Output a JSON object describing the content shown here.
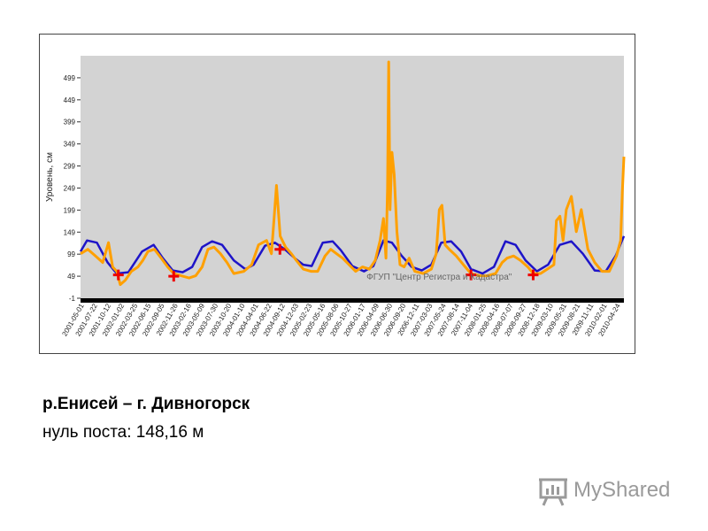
{
  "caption": {
    "title": "р.Енисей – г. Дивногорск",
    "subtitle": "нуль поста: 148,16 м"
  },
  "logo": {
    "text": "MyShared",
    "icon": "presentation-board-icon"
  },
  "colors": {
    "plot_bg": "#d3d3d3",
    "blue": "#1e14c8",
    "orange": "#ffa000",
    "marker": "#ee0000",
    "baseline": "#000000"
  },
  "chart_data": {
    "type": "line",
    "ylabel": "Уровень, см",
    "watermark": "ФГУП \"Центр Регистра и Кадастра\"",
    "ylim": [
      -1,
      549
    ],
    "yticks": [
      -1,
      49,
      99,
      149,
      199,
      249,
      299,
      349,
      399,
      449,
      499
    ],
    "grid": false,
    "x_tick_labels": [
      "2001-05-01",
      "2001-07-22",
      "2001-10-12",
      "2002-01-02",
      "2002-03-25",
      "2002-06-15",
      "2002-09-05",
      "2002-11-26",
      "2003-02-16",
      "2003-05-09",
      "2003-07-30",
      "2003-10-20",
      "2004-01-10",
      "2004-04-01",
      "2004-06-22",
      "2004-09-12",
      "2004-12-03",
      "2005-02-23",
      "2005-05-16",
      "2005-08-06",
      "2005-10-27",
      "2006-01-17",
      "2006-04-09",
      "2006-06-30",
      "2006-09-20",
      "2006-12-11",
      "2007-03-03",
      "2007-05-24",
      "2007-08-14",
      "2007-11-04",
      "2008-01-25",
      "2008-04-16",
      "2008-07-07",
      "2008-09-27",
      "2008-12-18",
      "2009-03-10",
      "2009-05-31",
      "2009-08-21",
      "2009-11-11",
      "2010-02-01",
      "2010-04-24"
    ],
    "x_start": "2001-05-01",
    "x_end": "2010-06-30",
    "series": [
      {
        "color": "#1e14c8",
        "x": [
          "2001-05-01",
          "2001-06-10",
          "2001-08-10",
          "2001-10-15",
          "2001-12-10",
          "2002-02-20",
          "2002-05-15",
          "2002-07-25",
          "2002-09-20",
          "2002-11-20",
          "2003-01-20",
          "2003-03-20",
          "2003-05-20",
          "2003-07-20",
          "2003-09-20",
          "2003-12-01",
          "2004-02-10",
          "2004-04-01",
          "2004-06-10",
          "2004-08-10",
          "2004-10-10",
          "2004-12-10",
          "2005-02-01",
          "2005-03-25",
          "2005-06-01",
          "2005-08-01",
          "2005-09-20",
          "2005-11-30",
          "2006-02-10",
          "2006-04-09",
          "2006-06-10",
          "2006-08-01",
          "2006-10-01",
          "2006-12-01",
          "2007-02-01",
          "2007-04-01",
          "2007-06-01",
          "2007-08-01",
          "2007-10-01",
          "2007-12-01",
          "2008-02-10",
          "2008-04-20",
          "2008-06-30",
          "2008-09-01",
          "2008-11-01",
          "2009-01-10",
          "2009-03-20",
          "2009-05-31",
          "2009-08-10",
          "2009-10-20",
          "2010-01-01",
          "2010-03-10",
          "2010-05-10",
          "2010-06-30"
        ],
        "y": [
          105,
          130,
          125,
          80,
          55,
          58,
          105,
          120,
          90,
          62,
          58,
          70,
          115,
          128,
          120,
          85,
          65,
          75,
          118,
          125,
          110,
          90,
          75,
          72,
          125,
          128,
          108,
          72,
          60,
          72,
          130,
          125,
          95,
          70,
          62,
          75,
          125,
          128,
          105,
          65,
          55,
          70,
          128,
          120,
          85,
          60,
          75,
          120,
          128,
          100,
          62,
          60,
          95,
          140
        ]
      },
      {
        "color": "#ffa000",
        "x": [
          "2001-05-01",
          "2001-06-15",
          "2001-08-01",
          "2001-09-15",
          "2001-10-20",
          "2001-11-15",
          "2001-12-10",
          "2002-01-01",
          "2002-02-01",
          "2002-03-10",
          "2002-04-20",
          "2002-05-20",
          "2002-06-20",
          "2002-07-30",
          "2002-09-10",
          "2002-10-20",
          "2002-11-26",
          "2003-01-10",
          "2003-03-01",
          "2003-04-10",
          "2003-05-20",
          "2003-06-25",
          "2003-08-01",
          "2003-09-10",
          "2003-10-20",
          "2003-12-01",
          "2004-02-01",
          "2004-03-20",
          "2004-05-01",
          "2004-06-20",
          "2004-07-20",
          "2004-08-05",
          "2004-08-20",
          "2004-09-12",
          "2004-10-15",
          "2004-11-20",
          "2004-12-20",
          "2005-02-01",
          "2005-03-20",
          "2005-05-01",
          "2005-06-15",
          "2005-07-20",
          "2005-08-25",
          "2005-10-01",
          "2005-11-10",
          "2005-12-20",
          "2006-02-01",
          "2006-03-15",
          "2006-04-20",
          "2006-05-20",
          "2006-06-10",
          "2006-06-25",
          "2006-07-05",
          "2006-07-12",
          "2006-07-20",
          "2006-08-01",
          "2006-08-15",
          "2006-09-01",
          "2006-09-20",
          "2006-10-15",
          "2006-11-15",
          "2006-12-20",
          "2007-02-10",
          "2007-04-01",
          "2007-05-01",
          "2007-05-20",
          "2007-06-05",
          "2007-06-25",
          "2007-07-20",
          "2007-09-01",
          "2007-10-15",
          "2007-12-01",
          "2008-01-25",
          "2008-03-10",
          "2008-04-30",
          "2008-06-10",
          "2008-07-10",
          "2008-08-20",
          "2008-10-01",
          "2008-11-15",
          "2008-12-18",
          "2009-02-01",
          "2009-03-15",
          "2009-04-25",
          "2009-05-10",
          "2009-06-01",
          "2009-06-20",
          "2009-07-10",
          "2009-08-10",
          "2009-09-10",
          "2009-10-10",
          "2009-11-20",
          "2010-01-01",
          "2010-02-15",
          "2010-04-01",
          "2010-05-15",
          "2010-06-10",
          "2010-06-20",
          "2010-06-30"
        ],
        "y": [
          100,
          110,
          95,
          80,
          125,
          70,
          60,
          30,
          40,
          60,
          70,
          85,
          105,
          110,
          90,
          70,
          55,
          50,
          45,
          50,
          70,
          110,
          115,
          100,
          80,
          55,
          60,
          75,
          120,
          130,
          100,
          180,
          255,
          140,
          115,
          100,
          85,
          65,
          60,
          60,
          95,
          110,
          100,
          90,
          75,
          60,
          70,
          65,
          85,
          130,
          180,
          90,
          250,
          535,
          200,
          330,
          280,
          150,
          75,
          70,
          90,
          60,
          55,
          65,
          100,
          200,
          210,
          120,
          110,
          95,
          75,
          55,
          50,
          50,
          55,
          80,
          90,
          95,
          85,
          70,
          55,
          55,
          65,
          75,
          175,
          185,
          130,
          200,
          230,
          150,
          200,
          110,
          80,
          60,
          60,
          95,
          130,
          240,
          320
        ]
      }
    ],
    "markers": [
      {
        "x": "2001-12-20",
        "y": 52
      },
      {
        "x": "2002-11-26",
        "y": 49
      },
      {
        "x": "2004-09-10",
        "y": 110
      },
      {
        "x": "2007-12-01",
        "y": 52
      },
      {
        "x": "2008-12-18",
        "y": 52
      }
    ]
  }
}
